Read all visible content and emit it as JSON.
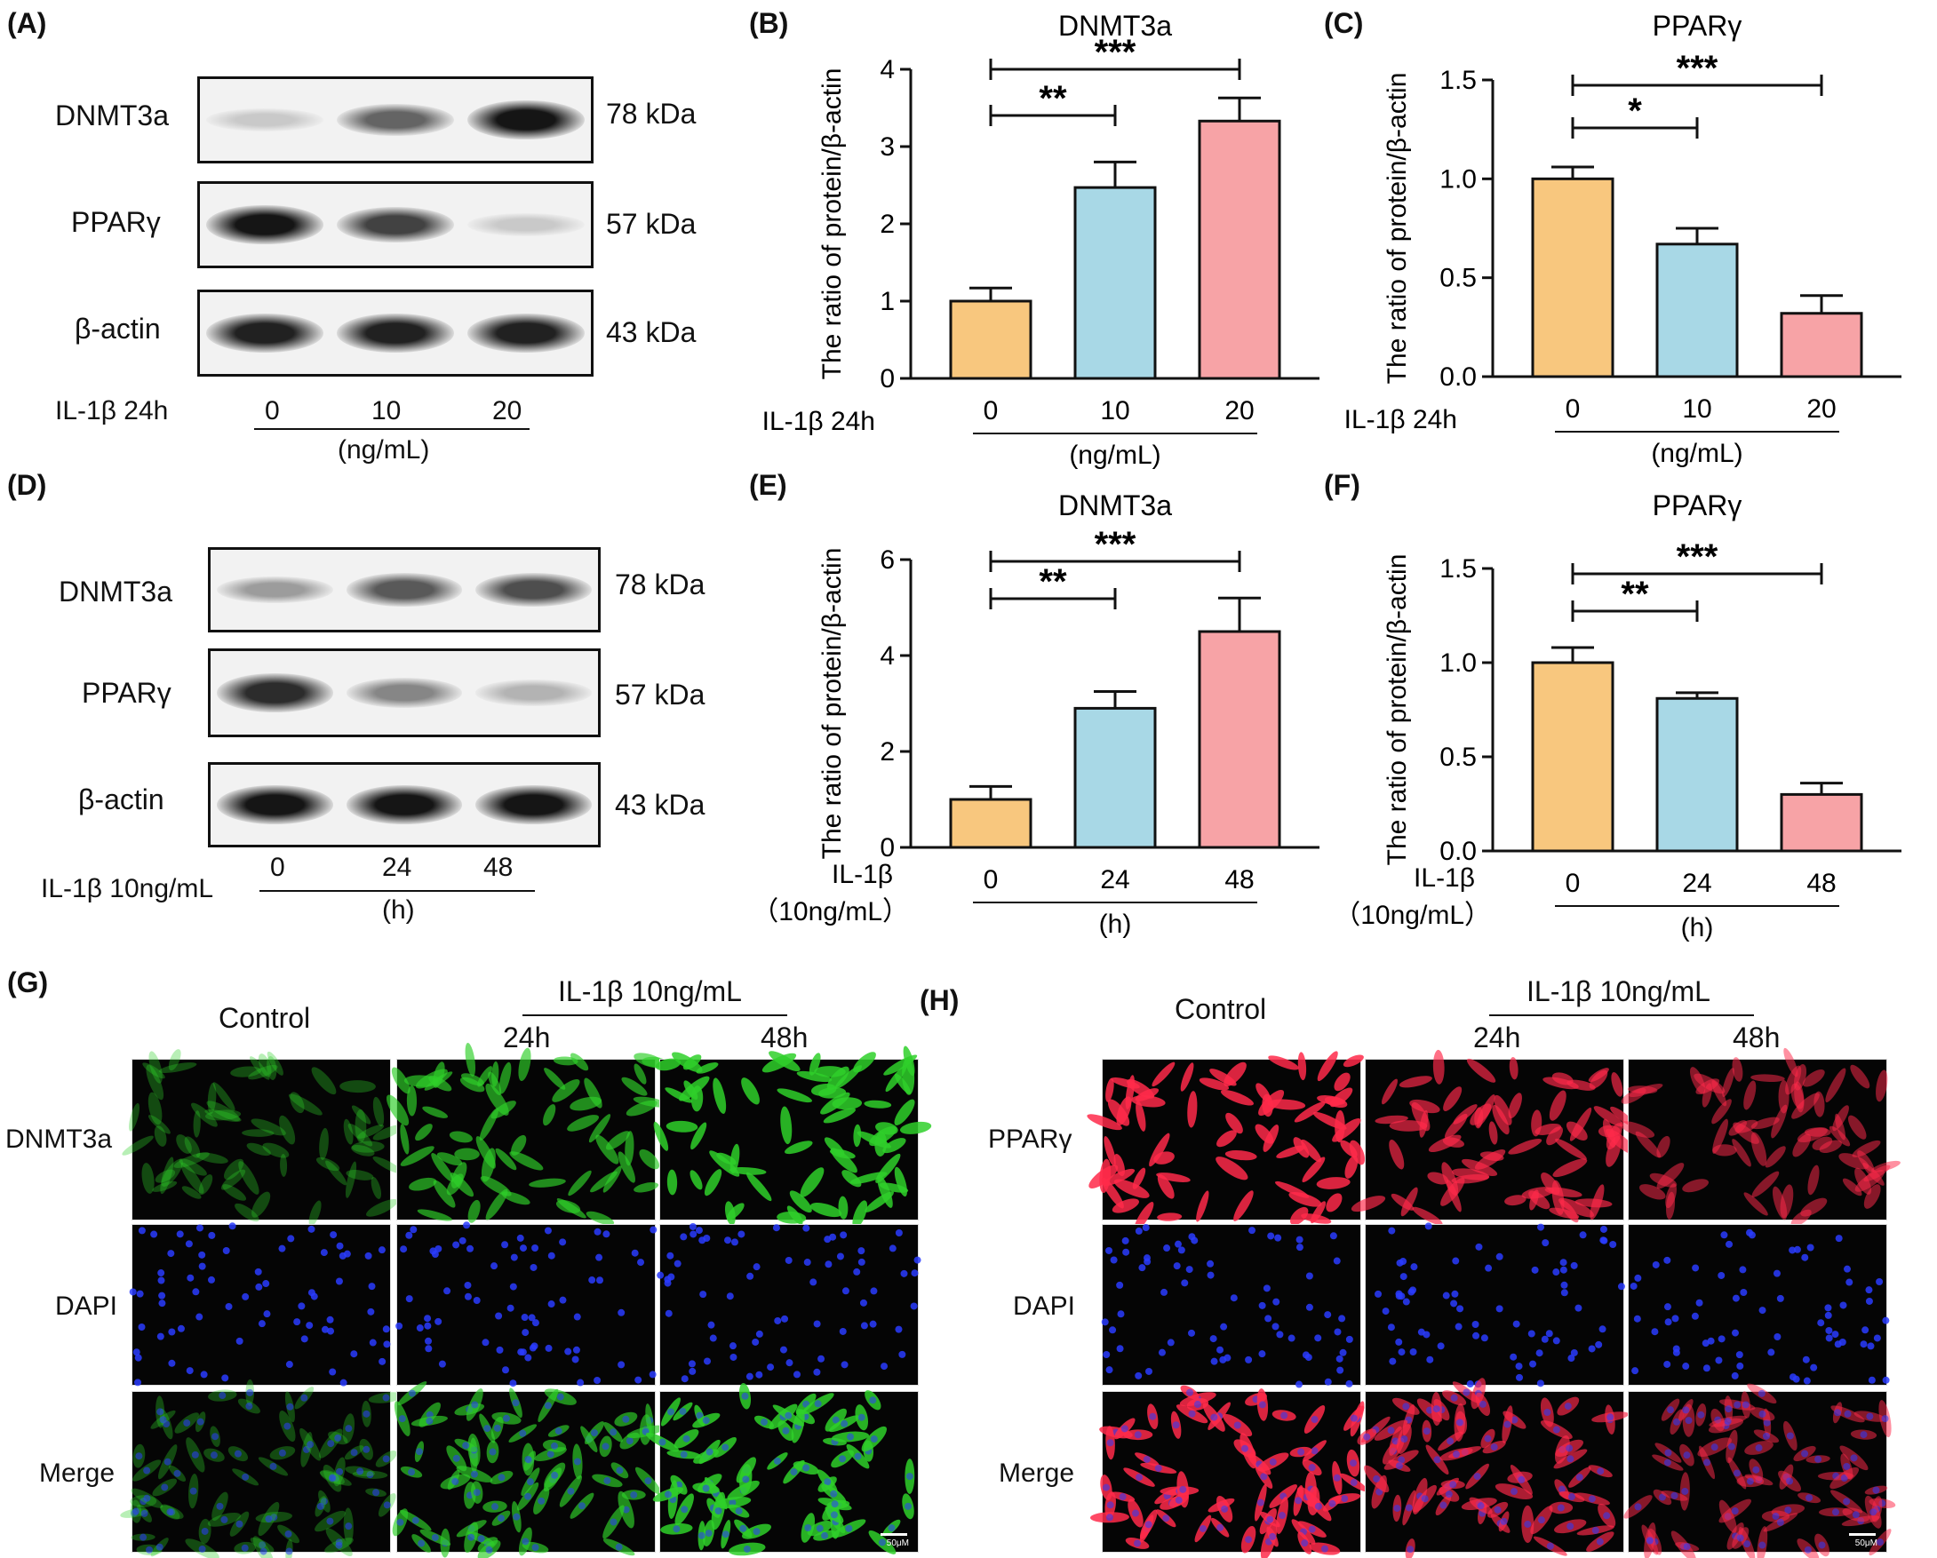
{
  "panel_labels": {
    "A": "(A)",
    "B": "(B)",
    "C": "(C)",
    "D": "(D)",
    "E": "(E)",
    "F": "(F)",
    "G": "(G)",
    "H": "(H)"
  },
  "blot_A": {
    "rows": [
      {
        "protein": "DNMT3a",
        "size": "78 kDa",
        "intensity": [
          0.15,
          0.6,
          0.95
        ]
      },
      {
        "protein": "PPARγ",
        "size": "57 kDa",
        "intensity": [
          0.95,
          0.75,
          0.15
        ]
      },
      {
        "protein": "β-actin",
        "size": "43 kDa",
        "intensity": [
          0.9,
          0.9,
          0.9
        ]
      }
    ],
    "treatment_label": "IL-1β 24h",
    "lanes": [
      "0",
      "10",
      "20"
    ],
    "unit": "(ng/mL)"
  },
  "blot_D": {
    "rows": [
      {
        "protein": "DNMT3a",
        "size": "78 kDa",
        "intensity": [
          0.35,
          0.65,
          0.7
        ]
      },
      {
        "protein": "PPARγ",
        "size": "57 kDa",
        "intensity": [
          0.85,
          0.45,
          0.25
        ]
      },
      {
        "protein": "β-actin",
        "size": "43 kDa",
        "intensity": [
          0.95,
          0.95,
          0.95
        ]
      }
    ],
    "treatment_label": "IL-1β 10ng/mL",
    "lanes": [
      "0",
      "24",
      "48"
    ],
    "unit": "(h)"
  },
  "chart_data": [
    {
      "panel": "B",
      "type": "bar",
      "title": "DNMT3a",
      "ylabel": "The ratio of   protein/β-actin",
      "categories": [
        "0",
        "10",
        "20"
      ],
      "values": [
        1.0,
        2.47,
        3.33
      ],
      "errors": [
        0.17,
        0.33,
        0.3
      ],
      "ylim": [
        0,
        4
      ],
      "yticks": [
        "0",
        "1",
        "2",
        "3",
        "4"
      ],
      "xprefix": "IL-1β 24h",
      "xunit": "(ng/mL)",
      "sig": [
        {
          "from": 0,
          "to": 1,
          "label": "**"
        },
        {
          "from": 0,
          "to": 2,
          "label": "***"
        }
      ],
      "colors": [
        "#f8c77e",
        "#a8d8e6",
        "#f7a3a6"
      ]
    },
    {
      "panel": "C",
      "type": "bar",
      "title": "PPARγ",
      "ylabel": "The ratio of   protein/β-actin",
      "categories": [
        "0",
        "10",
        "20"
      ],
      "values": [
        1.0,
        0.67,
        0.32
      ],
      "errors": [
        0.06,
        0.08,
        0.09
      ],
      "ylim": [
        0,
        1.5
      ],
      "yticks": [
        "0.0",
        "0.5",
        "1.0",
        "1.5"
      ],
      "xprefix": "IL-1β 24h",
      "xunit": "(ng/mL)",
      "sig": [
        {
          "from": 0,
          "to": 1,
          "label": "*"
        },
        {
          "from": 0,
          "to": 2,
          "label": "***"
        }
      ],
      "colors": [
        "#f8c77e",
        "#a8d8e6",
        "#f7a3a6"
      ]
    },
    {
      "panel": "E",
      "type": "bar",
      "title": "DNMT3a",
      "ylabel": "The ratio of   protein/β-actin",
      "categories": [
        "0",
        "24",
        "48"
      ],
      "values": [
        1.0,
        2.9,
        4.5
      ],
      "errors": [
        0.27,
        0.35,
        0.7
      ],
      "ylim": [
        0,
        6
      ],
      "yticks": [
        "0",
        "2",
        "4",
        "6"
      ],
      "xprefix": "IL-1β",
      "xprefix2": "（10ng/mL）",
      "xunit": "(h)",
      "sig": [
        {
          "from": 0,
          "to": 1,
          "label": "**"
        },
        {
          "from": 0,
          "to": 2,
          "label": "***"
        }
      ],
      "colors": [
        "#f8c77e",
        "#a8d8e6",
        "#f7a3a6"
      ]
    },
    {
      "panel": "F",
      "type": "bar",
      "title": "PPARγ",
      "ylabel": "The ratio of   protein/β-actin",
      "categories": [
        "0",
        "24",
        "48"
      ],
      "values": [
        1.0,
        0.81,
        0.3
      ],
      "errors": [
        0.08,
        0.03,
        0.06
      ],
      "ylim": [
        0,
        1.5
      ],
      "yticks": [
        "0.0",
        "0.5",
        "1.0",
        "1.5"
      ],
      "xprefix": "IL-1β",
      "xprefix2": "（10ng/mL）",
      "xunit": "(h)",
      "sig": [
        {
          "from": 0,
          "to": 1,
          "label": "**"
        },
        {
          "from": 0,
          "to": 2,
          "label": "***"
        }
      ],
      "colors": [
        "#f8c77e",
        "#a8d8e6",
        "#f7a3a6"
      ]
    }
  ],
  "if_G": {
    "header_control": "Control",
    "header_treatment": "IL-1β 10ng/mL",
    "times": [
      "24h",
      "48h"
    ],
    "rows": [
      "DNMT3a",
      "DAPI",
      "Merge"
    ],
    "scale": "50μM",
    "colors": {
      "marker": "#2fd02a",
      "dapi": "#2a3cff",
      "bg": "#050505"
    },
    "marker_brightness": [
      0.15,
      0.7,
      1.0
    ]
  },
  "if_H": {
    "header_control": "Control",
    "header_treatment": "IL-1β 10ng/mL",
    "times": [
      "24h",
      "48h"
    ],
    "rows": [
      "PPARγ",
      "DAPI",
      "Merge"
    ],
    "scale": "50μM",
    "colors": {
      "marker": "#ff2a4a",
      "dapi": "#2a3cff",
      "bg": "#050505"
    },
    "marker_brightness": [
      1.0,
      0.7,
      0.45
    ]
  }
}
